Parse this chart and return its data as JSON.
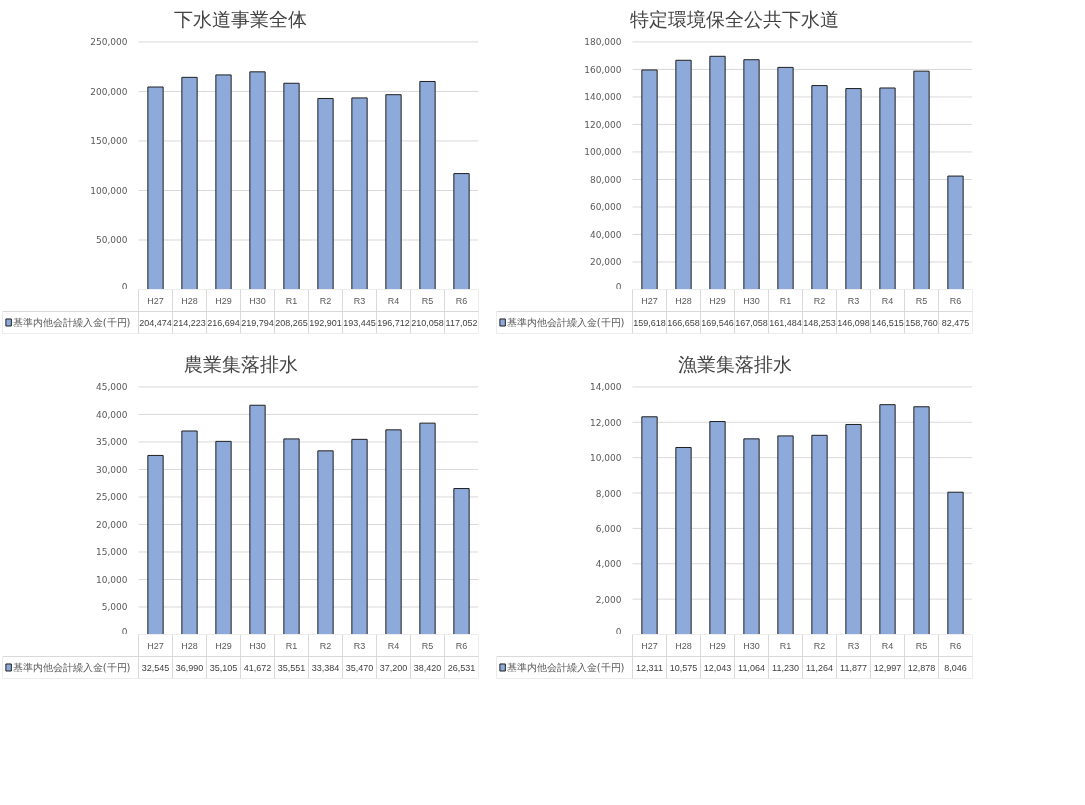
{
  "chart_data": [
    {
      "type": "bar",
      "title": "下水道事業全体",
      "categories": [
        "H27",
        "H28",
        "H29",
        "H30",
        "R1",
        "R2",
        "R3",
        "R4",
        "R5",
        "R6"
      ],
      "series": [
        {
          "name": "基準内他会計繰入金(千円)",
          "color": "#8eaadb",
          "values": [
            204474,
            214223,
            216694,
            219794,
            208265,
            192901,
            193445,
            196712,
            210058,
            117052
          ],
          "value_labels": [
            "204,474",
            "214,223",
            "216,694",
            "219,794",
            "208,265",
            "192,901",
            "193,445",
            "196,712",
            "210,058",
            "117,052"
          ]
        }
      ],
      "ylim": [
        0,
        250000
      ],
      "yticks": [
        {
          "value": 0,
          "label": "0"
        },
        {
          "value": 50000,
          "label": "50,000"
        },
        {
          "value": 100000,
          "label": "100,000"
        },
        {
          "value": 150000,
          "label": "150,000"
        },
        {
          "value": 200000,
          "label": "200,000"
        },
        {
          "value": 250000,
          "label": "250,000"
        }
      ],
      "grid": "y",
      "legend": "bottom"
    },
    {
      "type": "bar",
      "title": "特定環境保全公共下水道",
      "categories": [
        "H27",
        "H28",
        "H29",
        "H30",
        "R1",
        "R2",
        "R3",
        "R4",
        "R5",
        "R6"
      ],
      "series": [
        {
          "name": "基準内他会計繰入金(千円)",
          "color": "#8eaadb",
          "values": [
            159618,
            166658,
            169546,
            167058,
            161484,
            148253,
            146098,
            146515,
            158760,
            82475
          ],
          "value_labels": [
            "159,618",
            "166,658",
            "169,546",
            "167,058",
            "161,484",
            "148,253",
            "146,098",
            "146,515",
            "158,760",
            "82,475"
          ]
        }
      ],
      "ylim": [
        0,
        180000
      ],
      "yticks": [
        {
          "value": 0,
          "label": "0"
        },
        {
          "value": 20000,
          "label": "20,000"
        },
        {
          "value": 40000,
          "label": "40,000"
        },
        {
          "value": 60000,
          "label": "60,000"
        },
        {
          "value": 80000,
          "label": "80,000"
        },
        {
          "value": 100000,
          "label": "100,000"
        },
        {
          "value": 120000,
          "label": "120,000"
        },
        {
          "value": 140000,
          "label": "140,000"
        },
        {
          "value": 160000,
          "label": "160,000"
        },
        {
          "value": 180000,
          "label": "180,000"
        }
      ],
      "grid": "y",
      "legend": "bottom"
    },
    {
      "type": "bar",
      "title": "農業集落排水",
      "categories": [
        "H27",
        "H28",
        "H29",
        "H30",
        "R1",
        "R2",
        "R3",
        "R4",
        "R5",
        "R6"
      ],
      "series": [
        {
          "name": "基準内他会計繰入金(千円)",
          "color": "#8eaadb",
          "values": [
            32545,
            36990,
            35105,
            41672,
            35551,
            33384,
            35470,
            37200,
            38420,
            26531
          ],
          "value_labels": [
            "32,545",
            "36,990",
            "35,105",
            "41,672",
            "35,551",
            "33,384",
            "35,470",
            "37,200",
            "38,420",
            "26,531"
          ]
        }
      ],
      "ylim": [
        0,
        45000
      ],
      "yticks": [
        {
          "value": 0,
          "label": "0"
        },
        {
          "value": 5000,
          "label": "5,000"
        },
        {
          "value": 10000,
          "label": "10,000"
        },
        {
          "value": 15000,
          "label": "15,000"
        },
        {
          "value": 20000,
          "label": "20,000"
        },
        {
          "value": 25000,
          "label": "25,000"
        },
        {
          "value": 30000,
          "label": "30,000"
        },
        {
          "value": 35000,
          "label": "35,000"
        },
        {
          "value": 40000,
          "label": "40,000"
        },
        {
          "value": 45000,
          "label": "45,000"
        }
      ],
      "grid": "y",
      "legend": "bottom"
    },
    {
      "type": "bar",
      "title": "漁業集落排水",
      "categories": [
        "H27",
        "H28",
        "H29",
        "H30",
        "R1",
        "R2",
        "R3",
        "R4",
        "R5",
        "R6"
      ],
      "series": [
        {
          "name": "基準内他会計繰入金(千円)",
          "color": "#8eaadb",
          "values": [
            12311,
            10575,
            12043,
            11064,
            11230,
            11264,
            11877,
            12997,
            12878,
            8046
          ],
          "value_labels": [
            "12,311",
            "10,575",
            "12,043",
            "11,064",
            "11,230",
            "11,264",
            "11,877",
            "12,997",
            "12,878",
            "8,046"
          ]
        }
      ],
      "ylim": [
        0,
        14000
      ],
      "yticks": [
        {
          "value": 0,
          "label": "0"
        },
        {
          "value": 2000,
          "label": "2,000"
        },
        {
          "value": 4000,
          "label": "4,000"
        },
        {
          "value": 6000,
          "label": "6,000"
        },
        {
          "value": 8000,
          "label": "8,000"
        },
        {
          "value": 10000,
          "label": "10,000"
        },
        {
          "value": 12000,
          "label": "12,000"
        },
        {
          "value": 14000,
          "label": "14,000"
        }
      ],
      "grid": "y",
      "legend": "bottom"
    }
  ]
}
